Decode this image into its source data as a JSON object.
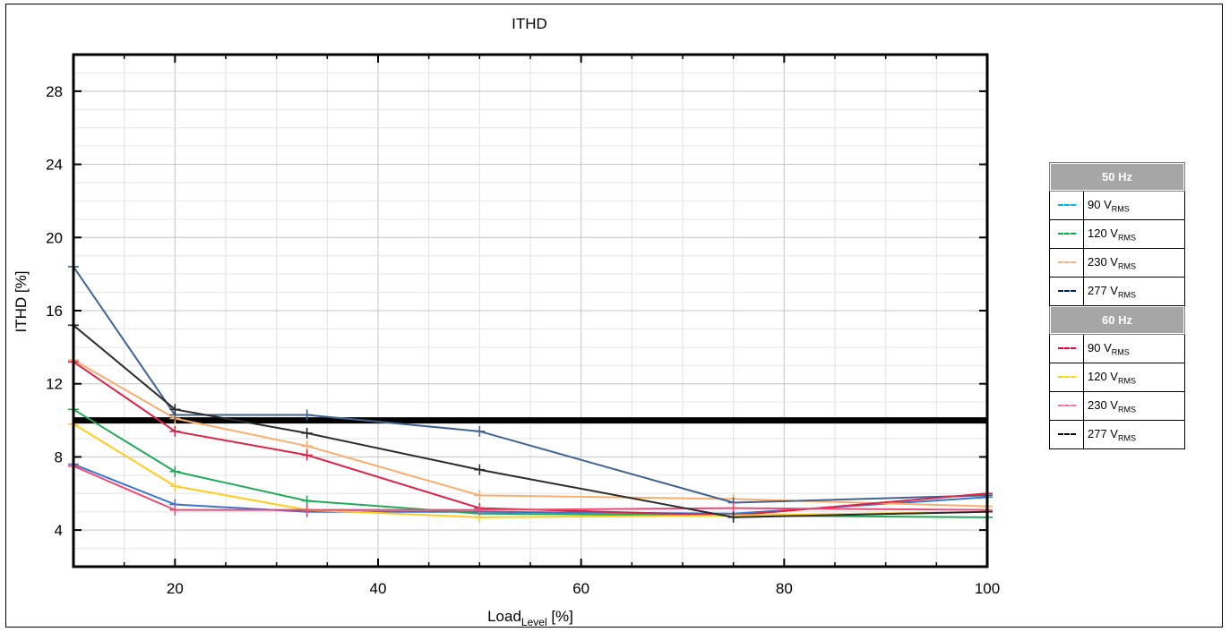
{
  "chart_data": {
    "type": "line",
    "title": "ITHD",
    "xlabel": {
      "main": "Load",
      "sub": "Level",
      "suffix": " [%]"
    },
    "ylabel": "ITHD [%]",
    "xlim": [
      10,
      100
    ],
    "ylim": [
      2,
      30
    ],
    "xticks": [
      20,
      40,
      60,
      80,
      100
    ],
    "yticks": [
      4,
      8,
      12,
      16,
      20,
      24,
      28
    ],
    "grid": true,
    "threshold": {
      "y": 10,
      "color": "#000000"
    },
    "x": [
      10,
      20,
      33,
      50,
      75,
      100
    ],
    "legend_position": "right",
    "legend_groups": [
      {
        "heading": "50 Hz",
        "entries": [
          {
            "volts": "90 V",
            "unit_sub": "RMS",
            "color": "#00b0f0"
          },
          {
            "volts": "120 V",
            "unit_sub": "RMS",
            "color": "#00b050"
          },
          {
            "volts": "230 V",
            "unit_sub": "RMS",
            "color": "#f4b183"
          },
          {
            "volts": "277 V",
            "unit_sub": "RMS",
            "color": "#002060"
          }
        ]
      },
      {
        "heading": "60 Hz",
        "entries": [
          {
            "volts": "90 V",
            "unit_sub": "RMS",
            "color": "#e8003c"
          },
          {
            "volts": "120 V",
            "unit_sub": "RMS",
            "color": "#ffd21f"
          },
          {
            "volts": "230 V",
            "unit_sub": "RMS",
            "color": "#ff6f9e"
          },
          {
            "volts": "277 V",
            "unit_sub": "RMS",
            "color": "#000000"
          }
        ]
      }
    ],
    "series": [
      {
        "color": "#3a73c9",
        "values": [
          7.6,
          5.4,
          5.0,
          5.0,
          4.9,
          5.8
        ]
      },
      {
        "color": "#24a85a",
        "values": [
          10.6,
          7.2,
          5.6,
          4.9,
          4.8,
          4.7
        ]
      },
      {
        "color": "#f7ae70",
        "values": [
          13.3,
          10.1,
          8.6,
          5.9,
          5.7,
          5.3
        ]
      },
      {
        "color": "#41638f",
        "values": [
          18.4,
          10.3,
          10.3,
          9.4,
          5.5,
          5.9
        ]
      },
      {
        "color": "#d8254a",
        "values": [
          13.2,
          9.4,
          8.1,
          5.2,
          4.8,
          6.0
        ]
      },
      {
        "color": "#ffcc22",
        "values": [
          9.8,
          6.4,
          5.1,
          4.7,
          4.8,
          5.0
        ]
      },
      {
        "color": "#ea4b77",
        "values": [
          7.5,
          5.1,
          5.1,
          5.1,
          5.2,
          5.1
        ]
      },
      {
        "color": "#2b2b2b",
        "values": [
          15.2,
          10.6,
          9.3,
          7.3,
          4.7,
          5.0
        ]
      }
    ]
  }
}
